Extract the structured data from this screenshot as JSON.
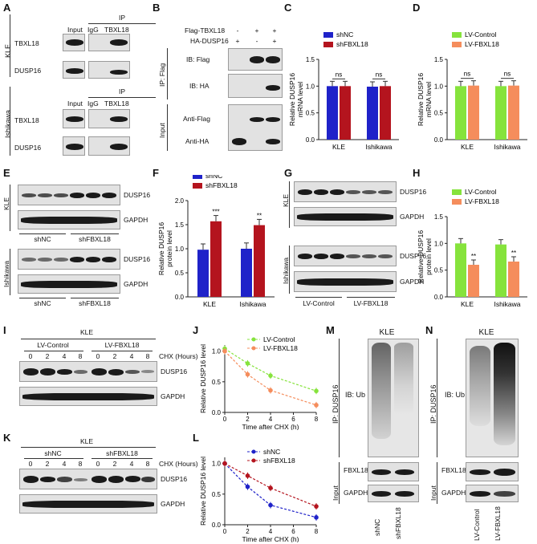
{
  "panels": [
    "A",
    "B",
    "C",
    "D",
    "E",
    "F",
    "G",
    "H",
    "I",
    "J",
    "K",
    "L",
    "M",
    "N"
  ],
  "panel_a": {
    "ip": "IP",
    "lanes": [
      "Input",
      "IgG",
      "TBXL18"
    ],
    "cell_lines": [
      "KLE",
      "Ishikawa"
    ],
    "rows": [
      "TBXL18",
      "DUSP16"
    ]
  },
  "panel_b": {
    "rows_top": [
      "Flag-TBXL18",
      "HA-DUSP16"
    ],
    "signs_flag": [
      "-",
      "+",
      "+"
    ],
    "signs_ha": [
      "+",
      "-",
      "+"
    ],
    "ip_label": "IP: Flag",
    "input_label": "Input",
    "blots": [
      "IB: Flag",
      "IB: HA",
      "Anti-Flag",
      "Anti-HA"
    ]
  },
  "chart_c": {
    "type": "bar",
    "ylabel": "Relative DUSP16 mRNA level",
    "categories": [
      "KLE",
      "Ishikawa"
    ],
    "ylim": [
      0,
      1.5
    ],
    "yticks": [
      "0.0",
      "0.5",
      "1.0",
      "1.5"
    ],
    "series": [
      {
        "name": "shNC",
        "values": [
          1.0,
          0.99
        ],
        "color": "#1f22c9"
      },
      {
        "name": "shFBXL18",
        "values": [
          1.0,
          1.0
        ],
        "color": "#b4141e"
      }
    ],
    "sig": [
      "ns",
      "ns"
    ]
  },
  "chart_d": {
    "type": "bar",
    "ylabel": "Relative DUSP16 mRNA level",
    "categories": [
      "KLE",
      "Ishikawa"
    ],
    "ylim": [
      0,
      1.5
    ],
    "yticks": [
      "0.0",
      "0.5",
      "1.0",
      "1.5"
    ],
    "series": [
      {
        "name": "LV-Control",
        "values": [
          1.0,
          1.0
        ],
        "color": "#86e33c"
      },
      {
        "name": "LV-FBXL18",
        "values": [
          1.01,
          1.01
        ],
        "color": "#f58d5c"
      }
    ],
    "sig": [
      "ns",
      "ns"
    ]
  },
  "panel_e": {
    "cell_lines": [
      "KLE",
      "Ishikawa"
    ],
    "rows": [
      "DUSP16",
      "GAPDH"
    ],
    "groups": [
      "shNC",
      "shFBXL18"
    ]
  },
  "chart_f": {
    "type": "bar",
    "ylabel": "Relative DUSP16 protein level",
    "categories": [
      "KLE",
      "Ishikawa"
    ],
    "ylim": [
      0,
      2.0
    ],
    "yticks": [
      "0.0",
      "0.5",
      "1.0",
      "1.5",
      "2.0"
    ],
    "series": [
      {
        "name": "shNC",
        "values": [
          0.98,
          1.0
        ],
        "color": "#1f22c9"
      },
      {
        "name": "shFBXL18",
        "values": [
          1.57,
          1.49
        ],
        "color": "#b4141e"
      }
    ],
    "sig": [
      "***",
      "**"
    ]
  },
  "panel_g": {
    "cell_lines": [
      "KLE",
      "Ishikawa"
    ],
    "rows": [
      "DUSP16",
      "GAPDH"
    ],
    "groups": [
      "LV-Control",
      "LV-FBXL18"
    ]
  },
  "chart_h": {
    "type": "bar",
    "ylabel": "Relative DUSP16 protein level",
    "categories": [
      "KLE",
      "Ishikawa"
    ],
    "ylim": [
      0,
      1.5
    ],
    "yticks": [
      "0.0",
      "0.5",
      "1.0",
      "1.5"
    ],
    "series": [
      {
        "name": "LV-Control",
        "values": [
          1.0,
          0.98
        ],
        "color": "#86e33c"
      },
      {
        "name": "LV-FBXL18",
        "values": [
          0.6,
          0.66
        ],
        "color": "#f58d5c"
      }
    ],
    "sig": [
      "**",
      "**"
    ]
  },
  "panel_i": {
    "title": "KLE",
    "groups": [
      "LV-Control",
      "LV-FBXL18"
    ],
    "times": [
      "0",
      "2",
      "4",
      "8",
      "0",
      "2",
      "4",
      "8"
    ],
    "chx": "CHX (Hours)",
    "rows": [
      "DUSP16",
      "GAPDH"
    ]
  },
  "chart_j": {
    "type": "line",
    "ylabel": "Relative DUSP16 level",
    "xlabel": "Time after CHX (h)",
    "x": [
      0,
      2,
      4,
      8
    ],
    "xticks": [
      "0",
      "2",
      "4",
      "6",
      "8"
    ],
    "yticks": [
      "0.0",
      "0.5",
      "1.0"
    ],
    "ylim": [
      0,
      1.1
    ],
    "xlim": [
      0,
      8
    ],
    "series": [
      {
        "name": "LV-Control",
        "values": [
          1.04,
          0.8,
          0.6,
          0.35
        ],
        "color": "#86e33c"
      },
      {
        "name": "LV-FBXL18",
        "values": [
          1.0,
          0.62,
          0.36,
          0.12
        ],
        "color": "#f58d5c"
      }
    ]
  },
  "panel_k": {
    "title": "KLE",
    "groups": [
      "shNC",
      "shFBXL18"
    ],
    "times": [
      "0",
      "2",
      "4",
      "8",
      "0",
      "2",
      "4",
      "8"
    ],
    "chx": "CHX (Hours)",
    "rows": [
      "DUSP16",
      "GAPDH"
    ]
  },
  "chart_l": {
    "type": "line",
    "ylabel": "Relative DUSP16 level",
    "xlabel": "Time after CHX (h)",
    "x": [
      0,
      2,
      4,
      8
    ],
    "xticks": [
      "0",
      "2",
      "4",
      "6",
      "8"
    ],
    "yticks": [
      "0.0",
      "0.5",
      "1.0"
    ],
    "ylim": [
      0,
      1.1
    ],
    "xlim": [
      0,
      8
    ],
    "series": [
      {
        "name": "shNC",
        "values": [
          1.0,
          0.62,
          0.32,
          0.12
        ],
        "color": "#1f22c9"
      },
      {
        "name": "shFBXL18",
        "values": [
          1.0,
          0.8,
          0.6,
          0.3
        ],
        "color": "#b4141e"
      }
    ]
  },
  "panel_m": {
    "title": "KLE",
    "ip": "IP: DUSP16",
    "ib": "IB: Ub",
    "input": "Input",
    "rows": [
      "FBXL18",
      "GAPDH"
    ],
    "lanes": [
      "shNC",
      "shFBXL18"
    ]
  },
  "panel_n": {
    "title": "KLE",
    "ip": "IP: DUSP16",
    "ib": "IB: Ub",
    "input": "Input",
    "rows": [
      "FBXL18",
      "GAPDH"
    ],
    "lanes": [
      "LV-Control",
      "LV-FBXL18"
    ]
  }
}
